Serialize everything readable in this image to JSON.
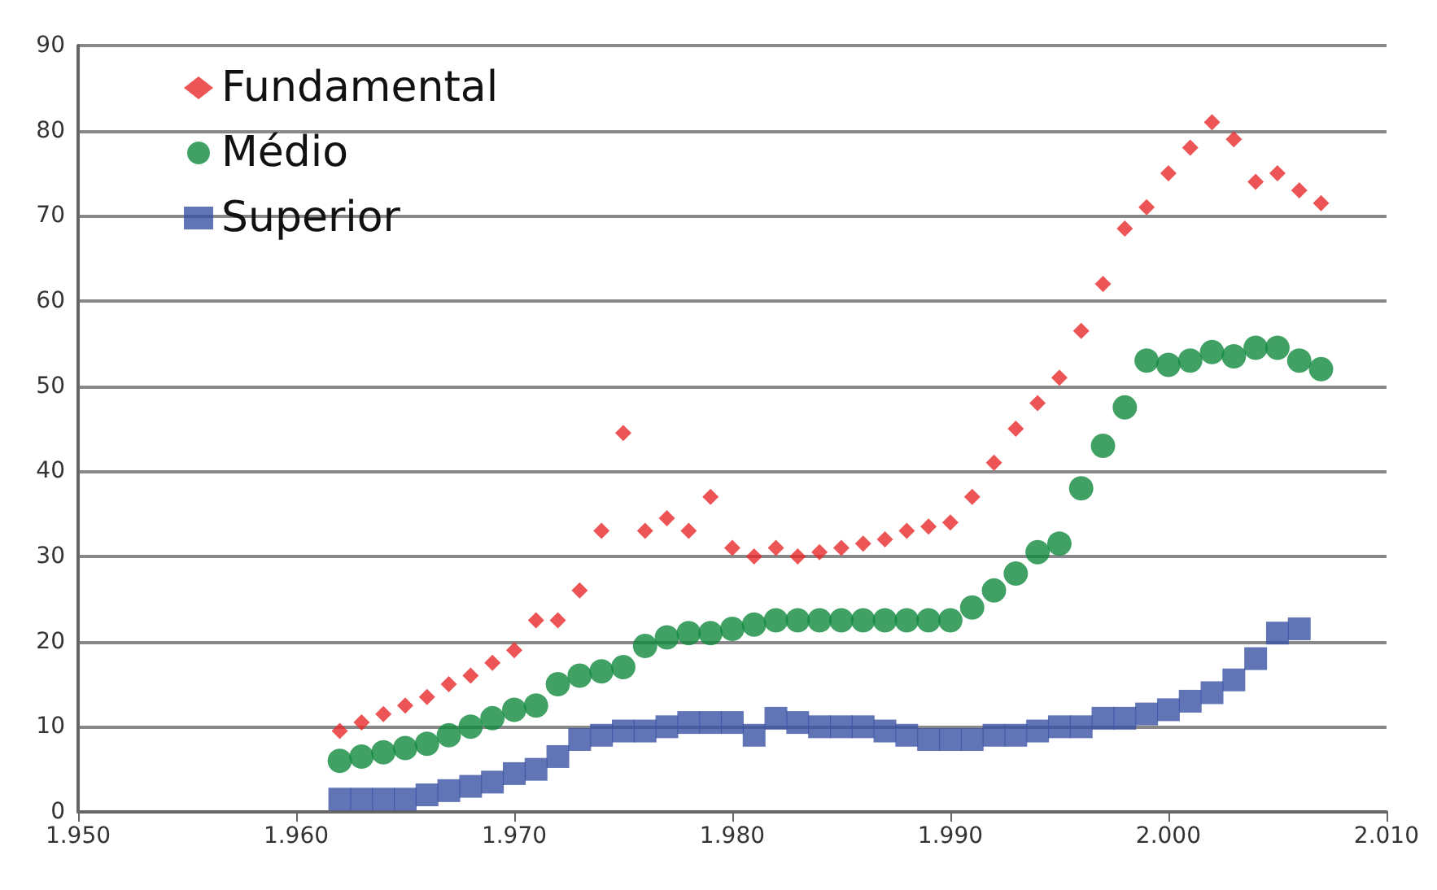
{
  "chart_data": {
    "type": "scatter",
    "x": [
      1962,
      1963,
      1964,
      1965,
      1966,
      1967,
      1968,
      1969,
      1970,
      1971,
      1972,
      1973,
      1974,
      1975,
      1976,
      1977,
      1978,
      1979,
      1980,
      1981,
      1982,
      1983,
      1984,
      1985,
      1986,
      1987,
      1988,
      1989,
      1990,
      1991,
      1992,
      1993,
      1994,
      1995,
      1996,
      1997,
      1998,
      1999,
      2000,
      2001,
      2002,
      2003,
      2004,
      2005,
      2006,
      2007
    ],
    "series": [
      {
        "name": "Fundamental",
        "color": "#e8292a",
        "marker": "diamond",
        "values": [
          9.5,
          10.5,
          11.5,
          12.5,
          13.5,
          15,
          16,
          17.5,
          19,
          22.5,
          22.5,
          26,
          33,
          44.5,
          33,
          34.5,
          33,
          37,
          31,
          30,
          31,
          30,
          30.5,
          31,
          31.5,
          32,
          33,
          33.5,
          34,
          37,
          41,
          45,
          48,
          51,
          56.5,
          62,
          68.5,
          71,
          75,
          78,
          81,
          79,
          74,
          75,
          73,
          71.5
        ]
      },
      {
        "name": "Médio",
        "color": "#128a3f",
        "marker": "circle",
        "values": [
          6,
          6.5,
          7,
          7.5,
          8,
          9,
          10,
          11,
          12,
          12.5,
          15,
          16,
          16.5,
          17,
          19.5,
          20.5,
          21,
          21,
          21.5,
          22,
          22.5,
          22.5,
          22.5,
          22.5,
          22.5,
          22.5,
          22.5,
          22.5,
          22.5,
          24,
          26,
          28,
          30.5,
          31.5,
          38,
          43,
          47.5,
          53,
          52.5,
          53,
          54,
          53.5,
          54.5,
          54.5,
          53,
          52
        ]
      },
      {
        "name": "Superior",
        "color": "#3a53a4",
        "marker": "square",
        "values": [
          1.5,
          1.5,
          1.5,
          1.5,
          2,
          2.5,
          3,
          3.5,
          4.5,
          5,
          6.5,
          8.5,
          9,
          9.5,
          9.5,
          10,
          10.5,
          10.5,
          10.5,
          9,
          11,
          10.5,
          10,
          10,
          10,
          9.5,
          9,
          8.5,
          8.5,
          8.5,
          9,
          9,
          9.5,
          10,
          10,
          11,
          11,
          11.5,
          12,
          13,
          14,
          15.5,
          18,
          21,
          21.5,
          null
        ]
      }
    ],
    "xlim": [
      1950,
      2010
    ],
    "xticks": [
      {
        "value": 1950,
        "label": "1.950"
      },
      {
        "value": 1960,
        "label": "1.960"
      },
      {
        "value": 1970,
        "label": "1.970"
      },
      {
        "value": 1980,
        "label": "1.980"
      },
      {
        "value": 1990,
        "label": "1.990"
      },
      {
        "value": 2000,
        "label": "2.000"
      },
      {
        "value": 2010,
        "label": "2.010"
      }
    ],
    "ylim": [
      0,
      90
    ],
    "yticks": [
      0,
      10,
      20,
      30,
      40,
      50,
      60,
      70,
      80,
      90
    ],
    "grid": "y",
    "legend": "top left"
  }
}
